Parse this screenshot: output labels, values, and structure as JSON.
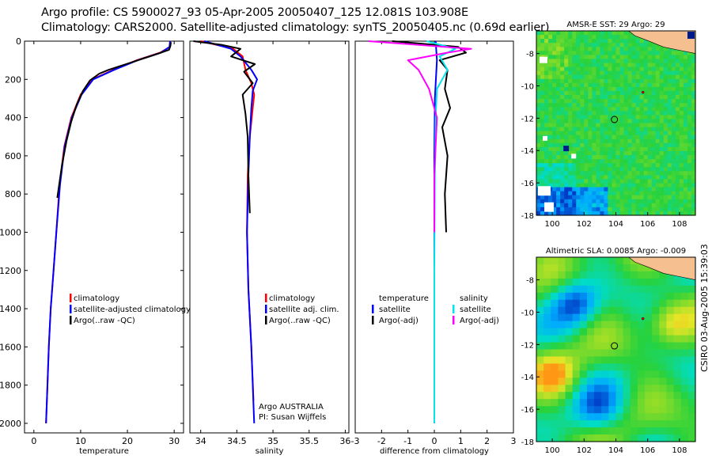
{
  "header": {
    "line1": "Argo profile: CS 5900027_93 05-Apr-2005 20050407_125 12.081S 103.908E",
    "line2": "Climatology: CARS2000. Satellite-adjusted climatology: synTS_20050405.nc (0.69d earlier)"
  },
  "stamp": "CSIRO 03-Aug-2005 15:39:03",
  "colors": {
    "red": "#ff0000",
    "blue": "#0000ff",
    "black": "#000000",
    "cyan": "#00e5ee",
    "magenta": "#ff00ff",
    "land": "#f5bf90",
    "marker": "#ff0000"
  },
  "chart_data": [
    {
      "id": "temperature",
      "type": "line",
      "xlabel": "temperature",
      "ylabel": "",
      "xlim": [
        -2,
        32
      ],
      "ylim": [
        2050,
        0
      ],
      "xticks": [
        0,
        10,
        20,
        30
      ],
      "yticks": [
        0,
        200,
        400,
        600,
        800,
        1000,
        1200,
        1400,
        1600,
        1800,
        2000
      ],
      "legend": {
        "position": "lower-right",
        "entries": [
          "climatology",
          "satellite-adjusted climatology",
          "Argo(..raw -QC)"
        ]
      },
      "series": [
        {
          "name": "climatology",
          "color": "red",
          "x": [
            29.2,
            29.1,
            27,
            22,
            17,
            12.5,
            10,
            8,
            6.5,
            5.5,
            4.8,
            4.2,
            3.6,
            3.2,
            2.9,
            2.6
          ],
          "y": [
            0,
            30,
            60,
            100,
            150,
            200,
            280,
            400,
            550,
            750,
            1000,
            1200,
            1400,
            1600,
            1800,
            2000
          ]
        },
        {
          "name": "satellite-adjusted climatology",
          "color": "blue",
          "x": [
            29.1,
            29.0,
            27.2,
            22.2,
            17.2,
            12.7,
            10.2,
            8.1,
            6.6,
            5.6,
            4.8,
            4.2,
            3.6,
            3.2,
            2.9,
            2.6
          ],
          "y": [
            0,
            30,
            60,
            100,
            150,
            200,
            280,
            400,
            550,
            750,
            1000,
            1200,
            1400,
            1600,
            1800,
            2000
          ]
        },
        {
          "name": "Argo(..raw -QC)",
          "color": "black",
          "x": [
            29.3,
            29.2,
            28.9,
            26,
            21,
            16,
            14,
            12,
            10.5,
            9.2,
            8,
            7,
            6,
            5
          ],
          "y": [
            5,
            25,
            45,
            70,
            110,
            150,
            170,
            205,
            260,
            330,
            420,
            520,
            650,
            820
          ]
        }
      ],
      "annotations": []
    },
    {
      "id": "salinity",
      "type": "line",
      "xlabel": "salinity",
      "ylabel": "",
      "xlim": [
        33.85,
        36.05
      ],
      "ylim": [
        2050,
        0
      ],
      "xticks": [
        34,
        34.5,
        35,
        35.5,
        36
      ],
      "yticks": [],
      "legend": {
        "position": "lower-right",
        "entries": [
          "climatology",
          "satellite adj. clim.",
          "Argo(..raw -QC)"
        ]
      },
      "series": [
        {
          "name": "climatology",
          "color": "red",
          "x": [
            34.0,
            34.45,
            34.58,
            34.62,
            34.7,
            34.74,
            34.72,
            34.68,
            34.65,
            34.64,
            34.66,
            34.7,
            34.73
          ],
          "y": [
            0,
            40,
            80,
            150,
            220,
            280,
            350,
            500,
            700,
            1000,
            1300,
            1600,
            1880
          ]
        },
        {
          "name": "satellite adj. clim.",
          "color": "blue",
          "x": [
            34.05,
            34.42,
            34.55,
            34.7,
            34.78,
            34.72,
            34.7,
            34.68,
            34.66,
            34.64,
            34.66,
            34.7,
            34.74
          ],
          "y": [
            0,
            40,
            80,
            150,
            200,
            260,
            350,
            500,
            700,
            1000,
            1300,
            1600,
            2000
          ]
        },
        {
          "name": "Argo(..raw -QC)",
          "color": "black",
          "x": [
            33.9,
            34.3,
            34.55,
            34.42,
            34.75,
            34.6,
            34.72,
            34.58,
            34.62,
            34.65,
            34.66,
            34.68
          ],
          "y": [
            0,
            20,
            40,
            80,
            120,
            160,
            220,
            280,
            380,
            500,
            700,
            900
          ]
        }
      ],
      "annotations": [
        "Argo AUSTRALIA",
        "PI: Susan Wijffels"
      ]
    },
    {
      "id": "difference",
      "type": "line",
      "xlabel": "difference from climatology",
      "ylabel": "",
      "xlim": [
        -3,
        3
      ],
      "ylim": [
        2050,
        0
      ],
      "xticks": [
        -3,
        -2,
        -1,
        0,
        1,
        2,
        3
      ],
      "yticks": [],
      "legend": {
        "position": "lower-right",
        "entries": [
          "temperature",
          "satellite",
          "Argo(-adj)",
          "salinity",
          "satellite",
          "Argo(-adj)"
        ]
      },
      "series": [
        {
          "name": "temperature satellite",
          "color": "blue",
          "x": [
            0.05,
            0.1,
            0.02,
            0.0,
            0.0,
            0.0,
            0.0
          ],
          "y": [
            0,
            100,
            300,
            600,
            1000,
            1500,
            2000
          ]
        },
        {
          "name": "temperature Argo(-adj)",
          "color": "black",
          "x": [
            -1.6,
            0.9,
            1.2,
            0.2,
            0.5,
            0.4,
            0.6,
            0.3,
            0.5,
            0.4,
            0.45
          ],
          "y": [
            0,
            30,
            60,
            100,
            150,
            250,
            350,
            450,
            600,
            800,
            1000
          ]
        },
        {
          "name": "salinity satellite",
          "color": "cyan",
          "x": [
            -0.3,
            0.8,
            0.2,
            0.5,
            0.1,
            0.05,
            0.02,
            0.0,
            0.0
          ],
          "y": [
            0,
            40,
            80,
            150,
            250,
            400,
            700,
            1200,
            2000
          ]
        },
        {
          "name": "salinity Argo(-adj)",
          "color": "magenta",
          "x": [
            -2.5,
            1.4,
            0.5,
            -1.0,
            -0.6,
            -0.2,
            0.1,
            0.0,
            0.0
          ],
          "y": [
            0,
            40,
            60,
            100,
            150,
            250,
            400,
            700,
            1000
          ]
        }
      ],
      "annotations": []
    },
    {
      "id": "sst_map",
      "type": "heatmap",
      "title": "AMSR-E SST: 29 Argo: 29",
      "xlim": [
        99,
        109
      ],
      "ylim": [
        -18,
        -6.6
      ],
      "xticks": [
        100,
        102,
        104,
        106,
        108
      ],
      "yticks": [
        -8,
        -10,
        -12,
        -14,
        -16,
        -18
      ],
      "argo_position": [
        103.908,
        -12.081
      ]
    },
    {
      "id": "sla_map",
      "type": "heatmap",
      "title": "Altimetric SLA: 0.0085 Argo: -0.009",
      "xlim": [
        99,
        109
      ],
      "ylim": [
        -18,
        -6.6
      ],
      "xticks": [
        100,
        102,
        104,
        106,
        108
      ],
      "yticks": [
        -8,
        -10,
        -12,
        -14,
        -16,
        -18
      ],
      "argo_position": [
        103.908,
        -12.081
      ]
    }
  ]
}
